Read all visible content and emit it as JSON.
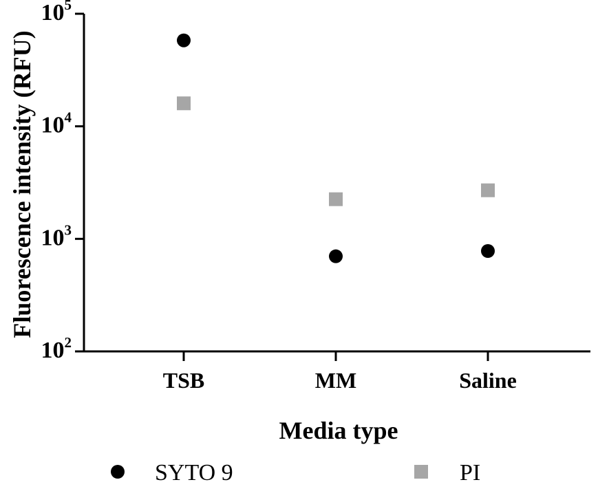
{
  "chart_data": {
    "type": "scatter",
    "title": "",
    "xlabel": "Media type",
    "ylabel": "Fluorescence intensity (RFU)",
    "yscale": "log",
    "ylim": [
      100,
      100000
    ],
    "yticks": [
      {
        "base": "10",
        "exp": "2",
        "value": 100
      },
      {
        "base": "10",
        "exp": "3",
        "value": 1000
      },
      {
        "base": "10",
        "exp": "4",
        "value": 10000
      },
      {
        "base": "10",
        "exp": "5",
        "value": 100000
      }
    ],
    "categories": [
      "TSB",
      "MM",
      "Saline"
    ],
    "series": [
      {
        "name": "SYTO 9",
        "marker": "circle",
        "color": "#000000",
        "values": [
          58000,
          700,
          780
        ]
      },
      {
        "name": "PI",
        "marker": "square",
        "color": "#a6a6a6",
        "values": [
          16000,
          2250,
          2700
        ]
      }
    ],
    "legend": "bottom",
    "grid": false
  }
}
